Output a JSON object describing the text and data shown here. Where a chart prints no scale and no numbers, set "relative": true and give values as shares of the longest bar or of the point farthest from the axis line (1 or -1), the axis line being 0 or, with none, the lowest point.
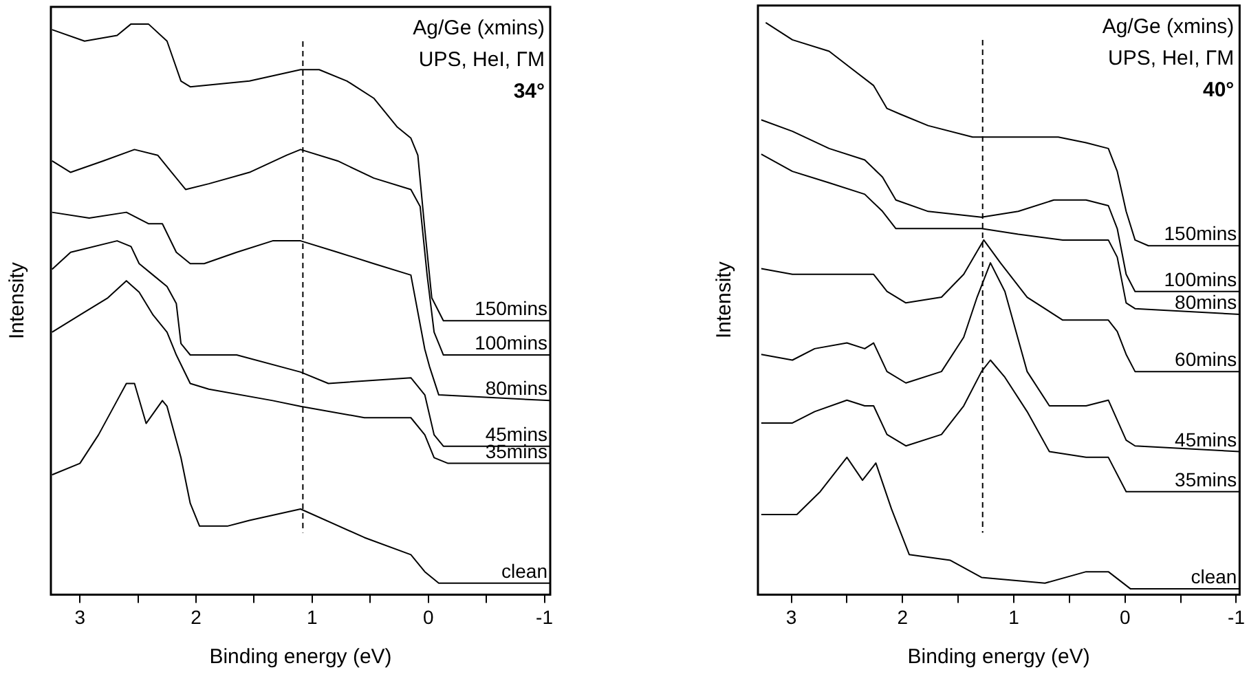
{
  "chart_data": [
    {
      "type": "line",
      "xlabel": "Binding energy (eV)",
      "ylabel": "Intensity",
      "relative": true,
      "grid": false,
      "legend": false,
      "marker": "none",
      "tick_labels": "x",
      "xlim": [
        3.25,
        -1.05
      ],
      "xticks": [
        3,
        {
          "value": 2.5,
          "label": null
        },
        2,
        {
          "value": 1.5,
          "label": null
        },
        1,
        {
          "value": 0.5,
          "label": null
        },
        0,
        {
          "value": -0.5,
          "label": null
        },
        -1
      ],
      "annotations": [
        "Ag/Ge (xmins)",
        "UPS, HeI, ΓM",
        "34°"
      ],
      "ref_lines": [
        {
          "axis": "x",
          "value": 1.08,
          "line_style": "dashed",
          "color": "#000000"
        }
      ],
      "series": [
        {
          "name": "150mins",
          "color": "#000000",
          "x": [
            3.24,
            2.96,
            2.68,
            2.56,
            2.41,
            2.25,
            2.13,
            2.05,
            1.54,
            1.1,
            0.94,
            0.7,
            0.47,
            0.27,
            0.15,
            0.09,
            0.03,
            -0.03,
            -0.13,
            -1.05
          ],
          "values": [
            0.99,
            0.97,
            0.98,
            1.0,
            1.0,
            0.97,
            0.9,
            0.89,
            0.9,
            0.92,
            0.92,
            0.9,
            0.87,
            0.82,
            0.8,
            0.77,
            0.64,
            0.52,
            0.48,
            0.48
          ]
        },
        {
          "name": "100mins",
          "color": "#000000",
          "x": [
            3.24,
            3.08,
            2.8,
            2.53,
            2.33,
            2.21,
            2.09,
            1.89,
            1.54,
            1.22,
            1.1,
            0.78,
            0.47,
            0.15,
            0.07,
            0.01,
            -0.05,
            -0.13,
            -1.05
          ],
          "values": [
            0.76,
            0.74,
            0.76,
            0.78,
            0.77,
            0.74,
            0.71,
            0.72,
            0.74,
            0.77,
            0.78,
            0.76,
            0.73,
            0.71,
            0.68,
            0.56,
            0.46,
            0.42,
            0.42
          ]
        },
        {
          "name": "80mins",
          "color": "#000000",
          "x": [
            3.24,
            2.92,
            2.6,
            2.41,
            2.29,
            2.17,
            2.05,
            1.93,
            1.65,
            1.34,
            1.1,
            0.78,
            0.47,
            0.15,
            0.03,
            -0.01,
            -0.09,
            -1.05
          ],
          "values": [
            0.67,
            0.66,
            0.67,
            0.65,
            0.65,
            0.6,
            0.58,
            0.58,
            0.6,
            0.62,
            0.62,
            0.6,
            0.58,
            0.56,
            0.43,
            0.4,
            0.35,
            0.34
          ]
        },
        {
          "name": "45mins",
          "color": "#000000",
          "x": [
            3.24,
            3.08,
            2.68,
            2.56,
            2.49,
            2.37,
            2.25,
            2.17,
            2.13,
            2.05,
            1.65,
            1.1,
            0.86,
            0.15,
            0.03,
            -0.05,
            -0.13,
            -1.05
          ],
          "values": [
            0.57,
            0.6,
            0.62,
            0.61,
            0.58,
            0.56,
            0.54,
            0.51,
            0.44,
            0.42,
            0.42,
            0.39,
            0.37,
            0.38,
            0.35,
            0.28,
            0.26,
            0.26
          ]
        },
        {
          "name": "35mins",
          "color": "#000000",
          "x": [
            3.24,
            3.0,
            2.76,
            2.6,
            2.49,
            2.37,
            2.25,
            2.17,
            2.05,
            1.89,
            1.34,
            1.1,
            0.55,
            0.15,
            0.03,
            -0.05,
            -0.17,
            -1.05
          ],
          "values": [
            0.46,
            0.49,
            0.52,
            0.55,
            0.53,
            0.49,
            0.46,
            0.42,
            0.37,
            0.36,
            0.34,
            0.33,
            0.31,
            0.31,
            0.28,
            0.24,
            0.23,
            0.23
          ]
        },
        {
          "name": "clean",
          "color": "#000000",
          "x": [
            3.24,
            3.0,
            2.84,
            2.68,
            2.6,
            2.53,
            2.43,
            2.29,
            2.25,
            2.13,
            2.05,
            1.97,
            1.73,
            1.54,
            1.1,
            0.55,
            0.15,
            0.03,
            -0.09,
            -1.05
          ],
          "values": [
            0.21,
            0.23,
            0.28,
            0.34,
            0.37,
            0.37,
            0.3,
            0.34,
            0.33,
            0.24,
            0.16,
            0.12,
            0.12,
            0.13,
            0.15,
            0.1,
            0.07,
            0.04,
            0.02,
            0.02
          ]
        }
      ]
    },
    {
      "type": "line",
      "xlabel": "Binding energy (eV)",
      "ylabel": "Intensity",
      "relative": true,
      "grid": false,
      "legend": false,
      "marker": "none",
      "tick_labels": "x",
      "xlim": [
        3.3,
        -1.03
      ],
      "xticks": [
        3,
        {
          "value": 2.5,
          "label": null
        },
        2,
        {
          "value": 1.5,
          "label": null
        },
        1,
        {
          "value": 0.5,
          "label": null
        },
        0,
        {
          "value": -0.5,
          "label": null
        },
        -1
      ],
      "annotations": [
        "Ag/Ge (xmins)",
        "UPS, HeI, ΓM",
        "40°"
      ],
      "ref_lines": [
        {
          "axis": "x",
          "value": 1.28,
          "line_style": "dashed",
          "color": "#000000"
        }
      ],
      "series": [
        {
          "name": "150mins",
          "color": "#000000",
          "x": [
            3.23,
            2.99,
            2.66,
            2.46,
            2.26,
            2.14,
            2.02,
            1.77,
            1.37,
            1.2,
            0.96,
            0.6,
            0.35,
            0.15,
            0.07,
            -0.01,
            -0.09,
            -0.21,
            -1.03
          ],
          "values": [
            1.0,
            0.97,
            0.95,
            0.92,
            0.89,
            0.85,
            0.84,
            0.82,
            0.8,
            0.8,
            0.8,
            0.8,
            0.79,
            0.78,
            0.74,
            0.67,
            0.62,
            0.61,
            0.61
          ]
        },
        {
          "name": "100mins",
          "color": "#000000",
          "x": [
            3.27,
            2.99,
            2.66,
            2.34,
            2.18,
            2.06,
            1.77,
            1.29,
            0.96,
            0.64,
            0.35,
            0.15,
            0.07,
            -0.01,
            -0.09,
            -1.03
          ],
          "values": [
            0.83,
            0.81,
            0.78,
            0.76,
            0.73,
            0.69,
            0.67,
            0.66,
            0.67,
            0.69,
            0.69,
            0.68,
            0.64,
            0.56,
            0.53,
            0.53
          ]
        },
        {
          "name": "80mins",
          "color": "#000000",
          "x": [
            3.27,
            2.99,
            2.66,
            2.34,
            2.18,
            2.06,
            1.77,
            1.29,
            0.96,
            0.56,
            0.15,
            0.07,
            -0.01,
            -0.09,
            -1.03
          ],
          "values": [
            0.77,
            0.74,
            0.72,
            0.7,
            0.67,
            0.64,
            0.64,
            0.64,
            0.63,
            0.62,
            0.62,
            0.59,
            0.51,
            0.5,
            0.49
          ]
        },
        {
          "name": "60mins",
          "color": "#000000",
          "x": [
            3.27,
            2.99,
            2.58,
            2.26,
            2.14,
            1.97,
            1.65,
            1.45,
            1.33,
            1.27,
            1.12,
            0.88,
            0.56,
            0.15,
            0.07,
            -0.01,
            -0.09,
            -1.03
          ],
          "values": [
            0.57,
            0.56,
            0.56,
            0.56,
            0.53,
            0.51,
            0.52,
            0.56,
            0.6,
            0.62,
            0.58,
            0.52,
            0.48,
            0.48,
            0.46,
            0.42,
            0.39,
            0.39
          ]
        },
        {
          "name": "45mins",
          "color": "#000000",
          "x": [
            3.27,
            2.99,
            2.79,
            2.5,
            2.34,
            2.26,
            2.14,
            1.97,
            1.65,
            1.45,
            1.33,
            1.21,
            1.08,
            0.88,
            0.68,
            0.35,
            0.15,
            -0.01,
            -0.09,
            -1.03
          ],
          "values": [
            0.42,
            0.41,
            0.43,
            0.44,
            0.43,
            0.44,
            0.39,
            0.37,
            0.39,
            0.45,
            0.52,
            0.58,
            0.53,
            0.39,
            0.33,
            0.33,
            0.34,
            0.27,
            0.26,
            0.25
          ]
        },
        {
          "name": "35mins",
          "color": "#000000",
          "x": [
            3.27,
            2.99,
            2.79,
            2.5,
            2.34,
            2.26,
            2.14,
            1.97,
            1.65,
            1.45,
            1.29,
            1.21,
            1.08,
            0.88,
            0.68,
            0.35,
            0.15,
            -0.01,
            -0.09,
            -1.03
          ],
          "values": [
            0.3,
            0.3,
            0.32,
            0.34,
            0.33,
            0.33,
            0.28,
            0.26,
            0.28,
            0.33,
            0.39,
            0.41,
            0.38,
            0.32,
            0.25,
            0.24,
            0.24,
            0.18,
            0.18,
            0.18
          ]
        },
        {
          "name": "clean",
          "color": "#000000",
          "x": [
            3.27,
            2.95,
            2.74,
            2.5,
            2.36,
            2.24,
            2.1,
            1.94,
            1.57,
            1.29,
            0.72,
            0.35,
            0.15,
            -0.05,
            -1.03
          ],
          "values": [
            0.14,
            0.14,
            0.18,
            0.24,
            0.2,
            0.23,
            0.15,
            0.07,
            0.06,
            0.03,
            0.02,
            0.04,
            0.04,
            0.01,
            0.01
          ]
        }
      ]
    }
  ]
}
